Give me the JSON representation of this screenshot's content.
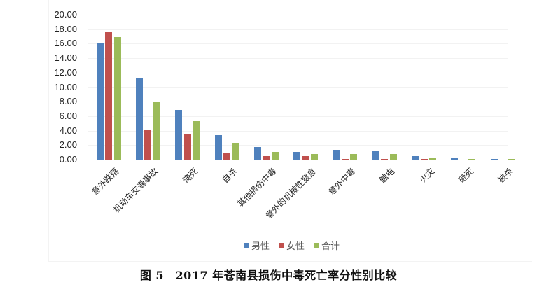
{
  "caption": "图 5　2017 年苍南县损伤中毒死亡率分性别比较",
  "legend": [
    {
      "label": "男性",
      "color": "#4f81bd"
    },
    {
      "label": "女性",
      "color": "#c0504d"
    },
    {
      "label": "合计",
      "color": "#9bbb59"
    }
  ],
  "y_ticks": [
    "20.00",
    "18.00",
    "16.00",
    "14.00",
    "12.00",
    "10.00",
    "8.00",
    "6.00",
    "4.00",
    "2.00",
    "0.00"
  ],
  "chart_data": {
    "type": "bar",
    "title": "图 5 2017 年苍南县损伤中毒死亡率分性别比较",
    "xlabel": "",
    "ylabel": "",
    "ylim": [
      0,
      20
    ],
    "yticks": [
      0,
      2,
      4,
      6,
      8,
      10,
      12,
      14,
      16,
      18,
      20
    ],
    "grid": true,
    "legend_position": "bottom",
    "categories": [
      "意外跌落",
      "机动车交通事故",
      "淹死",
      "自杀",
      "其他损伤中毒",
      "意外的机械性窒息",
      "意外中毒",
      "触电",
      "火灾",
      "砸死",
      "被杀"
    ],
    "series": [
      {
        "name": "男性",
        "color": "#4f81bd",
        "values": [
          16.1,
          11.2,
          6.9,
          3.35,
          1.7,
          1.1,
          1.35,
          1.3,
          0.45,
          0.3,
          0.1
        ]
      },
      {
        "name": "女性",
        "color": "#c0504d",
        "values": [
          17.6,
          4.1,
          3.6,
          1.0,
          0.5,
          0.5,
          0.1,
          0.1,
          0.1,
          0.0,
          0.0
        ]
      },
      {
        "name": "合计",
        "color": "#9bbb59",
        "values": [
          16.9,
          7.9,
          5.3,
          2.3,
          1.1,
          0.8,
          0.8,
          0.75,
          0.3,
          0.1,
          0.05
        ]
      }
    ]
  }
}
